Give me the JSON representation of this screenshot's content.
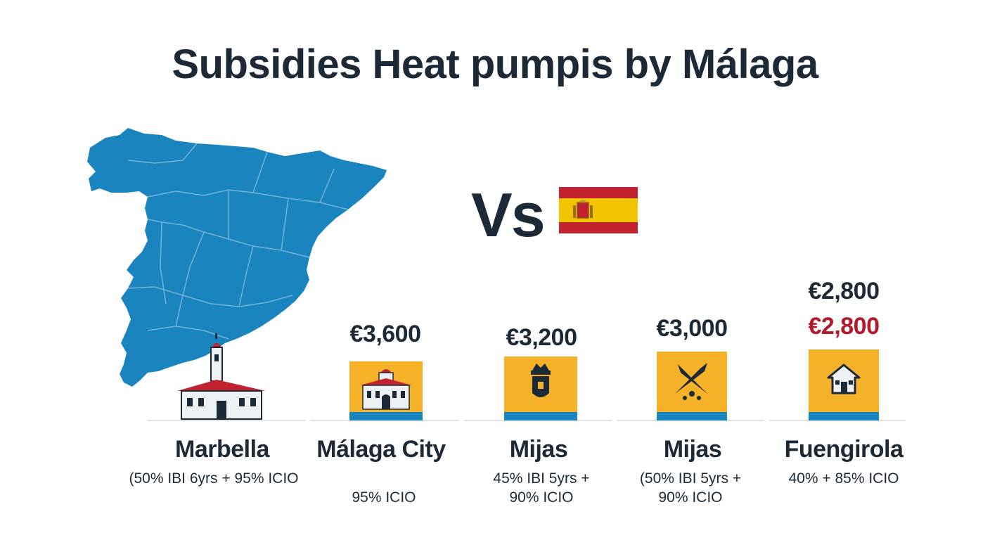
{
  "title": "Subsidies Heat pumpis by Málaga",
  "comparison": {
    "vs_label": "Vs",
    "flag_icon": "spain-flag-icon"
  },
  "colors": {
    "map_blue": "#1a84bf",
    "tile_yellow": "#f5b128",
    "stripe_blue": "#1a84bf",
    "text_dark": "#1b2a36",
    "accent_red": "#b3192b"
  },
  "municipalities": [
    {
      "name": "Marbella",
      "detail_line1": "(50% IBI 6yrs + 95% ICIO",
      "detail_line2": "",
      "icon": "town-hall-icon"
    },
    {
      "name": "Málaga City",
      "amount": "€3,600",
      "detail_line1": "95% ICIO",
      "detail_line2": "",
      "icon": "town-hall-icon"
    },
    {
      "name": "Mijas",
      "amount": "€3,200",
      "detail_line1": "45% IBI 5yrs +",
      "detail_line2": "90% ICIO",
      "icon": "coat-of-arms-icon"
    },
    {
      "name": "Mijas",
      "amount": "€3,000",
      "detail_line1": "(50% IBI 5yrs +",
      "detail_line2": "90% ICIO",
      "icon": "crossed-fish-icon"
    },
    {
      "name": "Fuengirola",
      "amount": "€2,800",
      "amount_secondary": "€2,800",
      "detail_line1": "40% + 85% ICIO",
      "detail_line2": "",
      "icon": "house-icon"
    }
  ]
}
